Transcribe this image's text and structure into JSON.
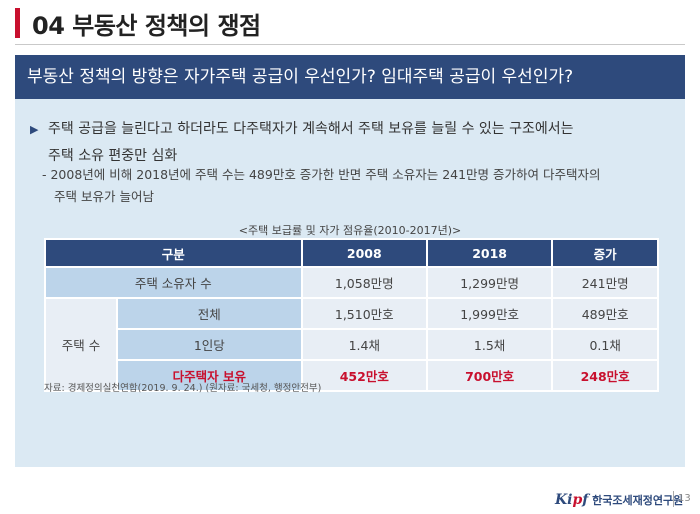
{
  "page": {
    "title": "04 부동산 정책의 쟁점",
    "banner": "부동산 정책의 방향은 자가주택 공급이 우선인가? 임대주택 공급이 우선인가?",
    "bullet": {
      "line1": "주택 공급을 늘린다고 하더라도 다주택자가 계속해서 주택 보유를 늘릴 수 있는 구조에서는",
      "line2": "주택 소유 편중만 심화"
    },
    "sub": {
      "line1": "- 2008년에 비해 2018년에 주택 수는 489만호 증가한 반면 주택 소유자는 241만명 증가하여 다주택자의",
      "line2": "주택 보유가 늘어남"
    },
    "table_caption": "<주택 보급률 및 자가 점유율(2010-2017년)>",
    "source": "자료: 경제정의실천연합(2019. 9. 24.) (원자료: 국세청, 행정안전부)",
    "logo_text": "한국조세재정연구원",
    "page_number": "13"
  },
  "table": {
    "headers": [
      "구분",
      "2008",
      "2018",
      "증가"
    ],
    "rows": {
      "owners": {
        "label": "주택 소유자 수",
        "v2008": "1,058만명",
        "v2018": "1,299만명",
        "inc": "241만명"
      },
      "houses_group": "주택 수",
      "total": {
        "label": "전체",
        "v2008": "1,510만호",
        "v2018": "1,999만호",
        "inc": "489만호"
      },
      "per_person": {
        "label": "1인당",
        "v2008": "1.4채",
        "v2018": "1.5채",
        "inc": "0.1채"
      },
      "multi": {
        "label": "다주택자 보유",
        "v2008": "452만호",
        "v2018": "700만호",
        "inc": "248만호"
      }
    }
  },
  "colors": {
    "accent_red": "#c8102e",
    "banner_navy": "#2e4a7c",
    "panel_bg": "#dbe9f3"
  },
  "icons": {
    "bullet": "triangle-right-icon"
  }
}
